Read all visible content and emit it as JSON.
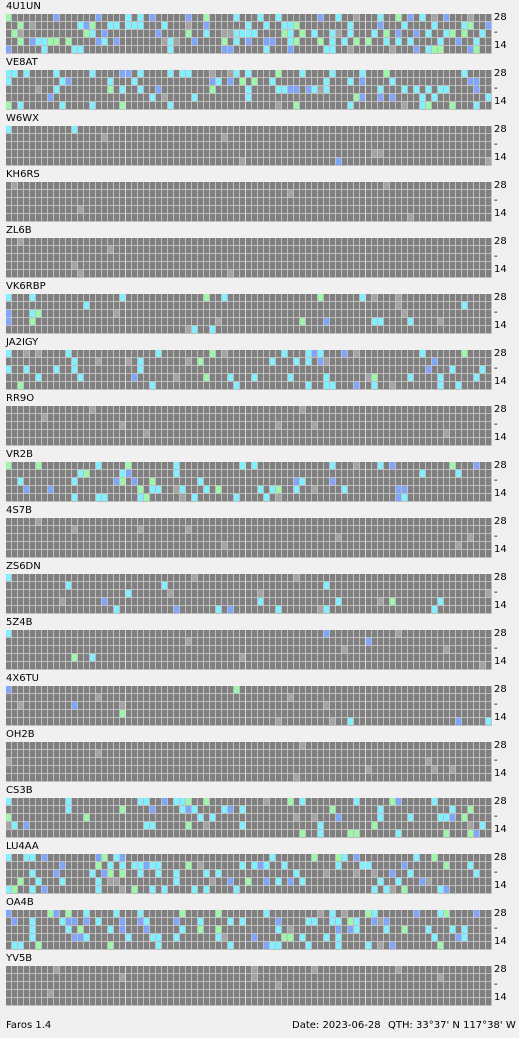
{
  "app": {
    "name": "Faros 1.4"
  },
  "status": {
    "date": "Date: 2023-06-28",
    "qth": "QTH: 33°37' N  117°38' W"
  },
  "scale": {
    "top": "28",
    "mid": "-",
    "bottom": "14"
  },
  "colors": {
    "empty": "#808080",
    "weak": "#a4a4a4",
    "cyan": "#7ff0ff",
    "green": "#9cf7a6",
    "blue": "#7ea6ff",
    "purple": "#8a7fff",
    "divider": "#bfbfbf"
  },
  "stations": [
    "4U1UN",
    "VE8AT",
    "W6WX",
    "KH6RS",
    "ZL6B",
    "VK6RBP",
    "JA2IGY",
    "RR9O",
    "VR2B",
    "4S7B",
    "ZS6DN",
    "5Z4B",
    "4X6TU",
    "OH2B",
    "CS3B",
    "LU4AA",
    "OA4B",
    "YV5B"
  ]
}
